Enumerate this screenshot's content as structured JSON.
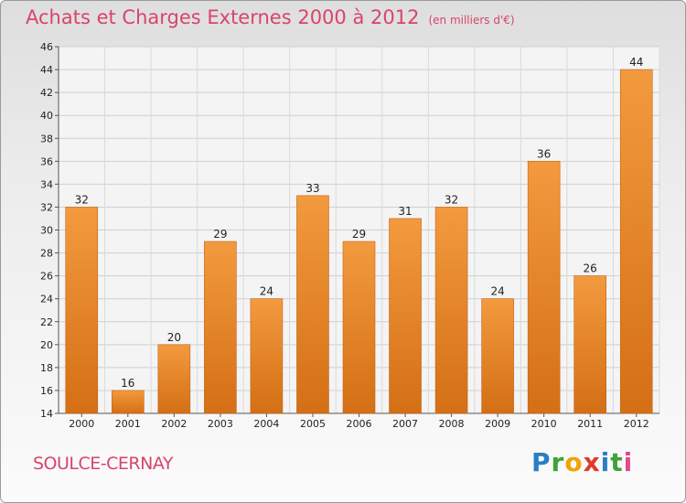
{
  "header": {
    "title": "Achats et Charges Externes 2000 à 2012",
    "unit": "(en milliers d'€)"
  },
  "footer": {
    "location": "SOULCE-CERNAY",
    "logo_letters": [
      {
        "ch": "P",
        "color": "#2a7fc4"
      },
      {
        "ch": "r",
        "color": "#3fa23a"
      },
      {
        "ch": "o",
        "color": "#f0a400"
      },
      {
        "ch": "x",
        "color": "#e03a2c"
      },
      {
        "ch": "i",
        "color": "#2a7fc4"
      },
      {
        "ch": "t",
        "color": "#3fa23a"
      },
      {
        "ch": "i",
        "color": "#e04a8a"
      }
    ]
  },
  "chart_data": {
    "type": "bar",
    "title": "Achats et Charges Externes 2000 à 2012",
    "categories": [
      "2000",
      "2001",
      "2002",
      "2003",
      "2004",
      "2005",
      "2006",
      "2007",
      "2008",
      "2009",
      "2010",
      "2011",
      "2012"
    ],
    "values": [
      32,
      16,
      20,
      29,
      24,
      33,
      29,
      31,
      32,
      24,
      36,
      26,
      44
    ],
    "ylim": [
      14,
      46
    ],
    "yticks": [
      14,
      16,
      18,
      20,
      22,
      24,
      26,
      28,
      30,
      32,
      34,
      36,
      38,
      40,
      42,
      44,
      46
    ],
    "grid": true,
    "bar_color": "#f39a3e",
    "bar_color_dark": "#d46f15"
  }
}
